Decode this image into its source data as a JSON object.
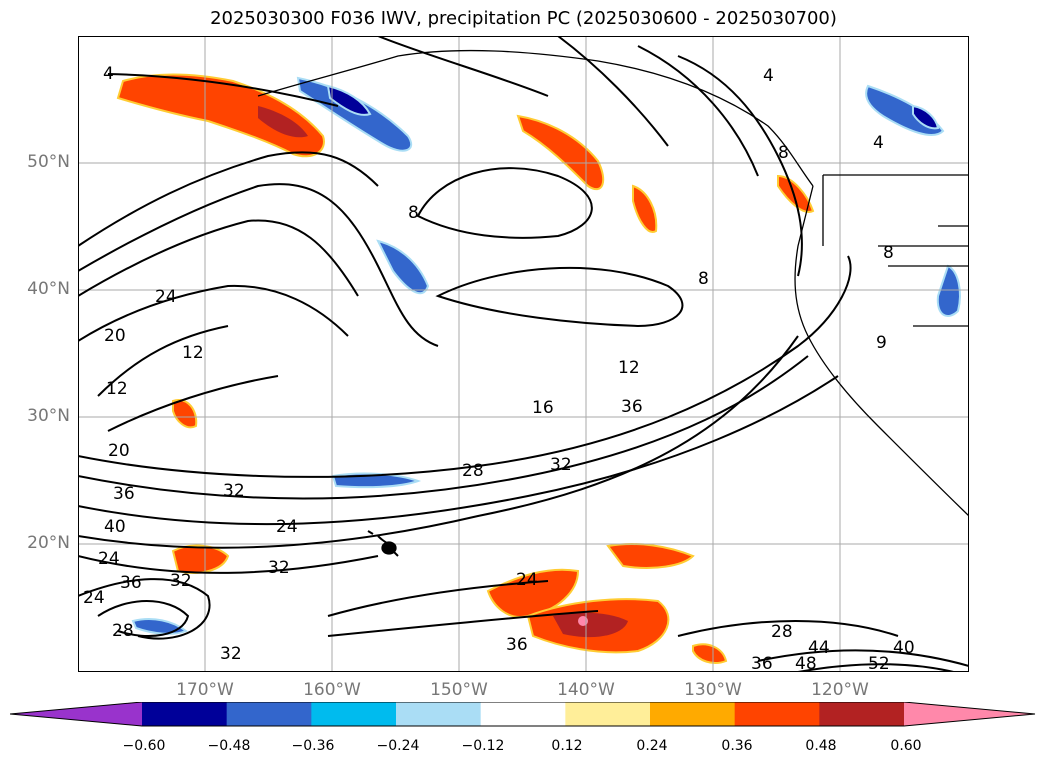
{
  "title": "2025030300 F036 IWV, precipitation PC (2025030600 - 2025030700)",
  "lat_labels": [
    "50°N",
    "40°N",
    "30°N",
    "20°N"
  ],
  "lon_labels": [
    "170°W",
    "160°W",
    "150°W",
    "140°W",
    "130°W",
    "120°W"
  ],
  "colorbar": {
    "ticks": [
      "−0.60",
      "−0.48",
      "−0.36",
      "−0.24",
      "−0.12",
      "0.12",
      "0.24",
      "0.36",
      "0.48",
      "0.60"
    ],
    "colors": [
      "#9933cc",
      "#000099",
      "#3366cc",
      "#00bbee",
      "#aaddf5",
      "#ffffff",
      "#ffee99",
      "#ffaa00",
      "#ff4400",
      "#b22222",
      "#ff88aa"
    ]
  },
  "contour_labels": [
    "4",
    "4",
    "4",
    "8",
    "8",
    "8",
    "8",
    "9",
    "12",
    "12",
    "12",
    "16",
    "20",
    "20",
    "24",
    "24",
    "24",
    "24",
    "24",
    "28",
    "28",
    "28",
    "32",
    "32",
    "32",
    "32",
    "32",
    "36",
    "36",
    "36",
    "36",
    "36",
    "40",
    "40",
    "44",
    "48",
    "52"
  ],
  "colors": {
    "land_outline": "#000000",
    "grid": "#aaaaaa",
    "contour": "#000000"
  }
}
